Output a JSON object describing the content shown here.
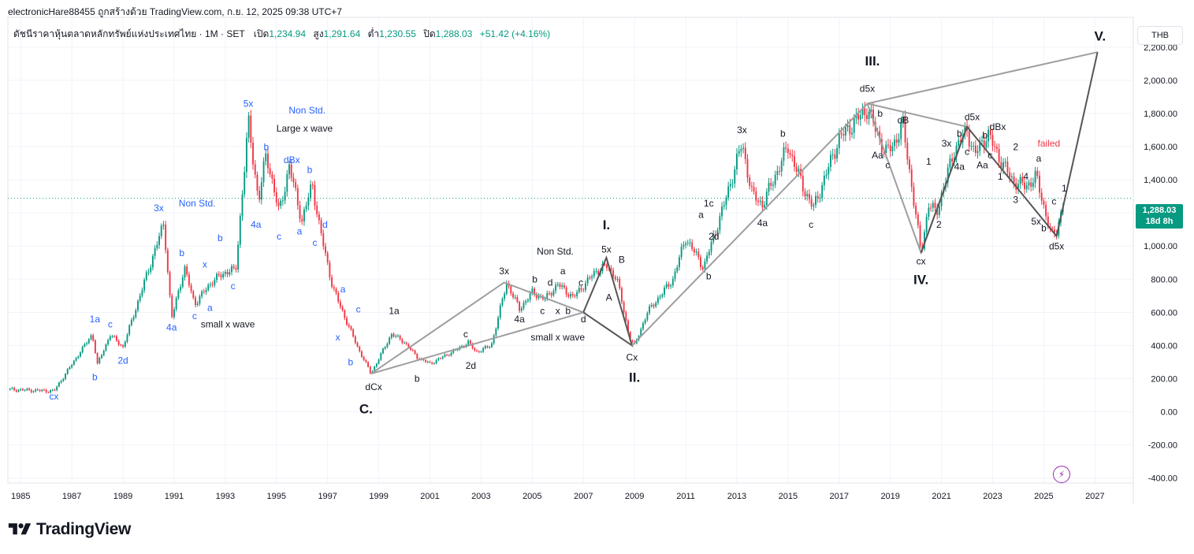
{
  "header": {
    "attribution": "electronicHare88455 ถูกสร้างด้วย TradingView.com, ก.ย. 12, 2025 09:38 UTC+7"
  },
  "legend": {
    "symbol": "ดัชนีราคาหุ้นตลาดหลักทรัพย์แห่งประเทศไทย · 1M · SET",
    "open_label": "เปิด",
    "open": "1,234.94",
    "high_label": "สูง",
    "high": "1,291.64",
    "low_label": "ต่ำ",
    "low": "1,230.55",
    "close_label": "ปิด",
    "close": "1,288.03",
    "change": "+51.42 (+4.16%)"
  },
  "currency": "THB",
  "price_tag": {
    "price": "1,288.03",
    "countdown": "18d 8h"
  },
  "brand": "TradingView",
  "colors": {
    "up": "#089981",
    "down": "#f23645",
    "wave_blue": "#2962ff",
    "line_gray": "#9e9e9e",
    "line_dark": "#555555",
    "failed_red": "#f23645"
  },
  "chart_data": {
    "type": "candlestick",
    "timeframe": "1M",
    "x_ticks": [
      "1985",
      "1987",
      "1989",
      "1991",
      "1993",
      "1995",
      "1997",
      "1999",
      "2001",
      "2003",
      "2005",
      "2007",
      "2009",
      "2011",
      "2013",
      "2015",
      "2017",
      "2019",
      "2021",
      "2023",
      "2025",
      "2027"
    ],
    "y_ticks": [
      "2,200.00",
      "2,000.00",
      "1,800.00",
      "1,600.00",
      "1,400.00",
      "1,200.00",
      "1,000.00",
      "800.00",
      "600.00",
      "400.00",
      "200.00",
      "0.00",
      "-200.00",
      "-400.00"
    ],
    "y_range": [
      -430,
      2380
    ],
    "x_range": [
      1984.5,
      2028.5
    ],
    "last_price": 1288.03,
    "price_path": [
      [
        1984.5,
        135
      ],
      [
        1986.3,
        125
      ],
      [
        1987.8,
        470
      ],
      [
        1988.0,
        285
      ],
      [
        1988.5,
        465
      ],
      [
        1989.0,
        390
      ],
      [
        1990.6,
        1140
      ],
      [
        1990.9,
        560
      ],
      [
        1991.4,
        870
      ],
      [
        1991.8,
        650
      ],
      [
        1992.5,
        790
      ],
      [
        1993.2,
        860
      ],
      [
        1993.4,
        840
      ],
      [
        1993.9,
        1750
      ],
      [
        1994.3,
        1270
      ],
      [
        1994.6,
        1560
      ],
      [
        1995.1,
        1200
      ],
      [
        1995.5,
        1480
      ],
      [
        1996.0,
        1150
      ],
      [
        1996.4,
        1380
      ],
      [
        1996.7,
        1100
      ],
      [
        1997.2,
        750
      ],
      [
        1997.7,
        560
      ],
      [
        1998.2,
        380
      ],
      [
        1998.7,
        230
      ],
      [
        1999.5,
        470
      ],
      [
        2000.0,
        420
      ],
      [
        2000.5,
        330
      ],
      [
        2001.0,
        290
      ],
      [
        2002.1,
        380
      ],
      [
        2002.5,
        420
      ],
      [
        2002.8,
        360
      ],
      [
        2003.4,
        400
      ],
      [
        2004.0,
        780
      ],
      [
        2004.5,
        620
      ],
      [
        2005.0,
        720
      ],
      [
        2005.5,
        680
      ],
      [
        2006.0,
        770
      ],
      [
        2006.6,
        690
      ],
      [
        2007.5,
        850
      ],
      [
        2007.9,
        880
      ],
      [
        2008.3,
        810
      ],
      [
        2008.8,
        450
      ],
      [
        2009.0,
        400
      ],
      [
        2009.5,
        600
      ],
      [
        2010.5,
        800
      ],
      [
        2011.0,
        1050
      ],
      [
        2011.7,
        870
      ],
      [
        2012.5,
        1250
      ],
      [
        2013.2,
        1620
      ],
      [
        2013.6,
        1310
      ],
      [
        2014.0,
        1250
      ],
      [
        2015.0,
        1600
      ],
      [
        2015.6,
        1350
      ],
      [
        2016.0,
        1230
      ],
      [
        2017.0,
        1650
      ],
      [
        2018.1,
        1830
      ],
      [
        2018.8,
        1560
      ],
      [
        2019.1,
        1610
      ],
      [
        2019.5,
        1730
      ],
      [
        2020.2,
        960
      ],
      [
        2020.5,
        1250
      ],
      [
        2020.8,
        1200
      ],
      [
        2021.5,
        1580
      ],
      [
        2022.0,
        1700
      ],
      [
        2022.3,
        1550
      ],
      [
        2022.8,
        1680
      ],
      [
        2023.3,
        1520
      ],
      [
        2023.8,
        1390
      ],
      [
        2024.3,
        1360
      ],
      [
        2024.7,
        1420
      ],
      [
        2025.3,
        1060
      ],
      [
        2025.5,
        1090
      ],
      [
        2025.8,
        1288
      ]
    ],
    "elliott_lines": [
      {
        "style": "gray",
        "points": [
          [
            1998.7,
            230
          ],
          [
            2003.9,
            780
          ],
          [
            2007.0,
            600
          ],
          [
            1998.7,
            230
          ]
        ]
      },
      {
        "style": "dark",
        "points": [
          [
            2007.0,
            600
          ],
          [
            2007.9,
            930
          ],
          [
            2008.9,
            400
          ],
          [
            2007.0,
            600
          ]
        ]
      },
      {
        "style": "gray",
        "points": [
          [
            2008.9,
            400
          ],
          [
            2018.1,
            1860
          ],
          [
            2027.1,
            2170
          ]
        ]
      },
      {
        "style": "gray",
        "points": [
          [
            2018.1,
            1860
          ],
          [
            2020.2,
            960
          ],
          [
            2022.0,
            1720
          ],
          [
            2018.1,
            1860
          ]
        ]
      },
      {
        "style": "dark",
        "points": [
          [
            2020.2,
            960
          ],
          [
            2022.0,
            1720
          ],
          [
            2025.5,
            1060
          ],
          [
            2027.1,
            2170
          ]
        ]
      }
    ],
    "annotations": [
      {
        "t": "cx",
        "x": 1986.3,
        "y": 75,
        "c": "blue"
      },
      {
        "t": "b",
        "x": 1987.9,
        "y": 190,
        "c": "blue"
      },
      {
        "t": "1a",
        "x": 1987.9,
        "y": 540,
        "c": "blue"
      },
      {
        "t": "c",
        "x": 1988.5,
        "y": 510,
        "c": "blue"
      },
      {
        "t": "2d",
        "x": 1989.0,
        "y": 290,
        "c": "blue"
      },
      {
        "t": "3x",
        "x": 1990.4,
        "y": 1210,
        "c": "blue"
      },
      {
        "t": "Non Std.",
        "x": 1991.9,
        "y": 1240,
        "c": "blue"
      },
      {
        "t": "4a",
        "x": 1990.9,
        "y": 490,
        "c": "blue"
      },
      {
        "t": "b",
        "x": 1991.3,
        "y": 940,
        "c": "blue"
      },
      {
        "t": "c",
        "x": 1991.8,
        "y": 560,
        "c": "blue"
      },
      {
        "t": "x",
        "x": 1992.2,
        "y": 870,
        "c": "blue"
      },
      {
        "t": "a",
        "x": 1992.4,
        "y": 610,
        "c": "blue"
      },
      {
        "t": "b",
        "x": 1992.8,
        "y": 1030,
        "c": "blue"
      },
      {
        "t": "c",
        "x": 1993.3,
        "y": 740,
        "c": "blue"
      },
      {
        "t": "small x wave",
        "x": 1993.1,
        "y": 510,
        "c": "black"
      },
      {
        "t": "5x",
        "x": 1993.9,
        "y": 1840,
        "c": "blue"
      },
      {
        "t": "Non Std.",
        "x": 1996.2,
        "y": 1800,
        "c": "blue"
      },
      {
        "t": "Large x wave",
        "x": 1996.1,
        "y": 1690,
        "c": "black"
      },
      {
        "t": "b",
        "x": 1994.6,
        "y": 1580,
        "c": "blue"
      },
      {
        "t": "dBx",
        "x": 1995.6,
        "y": 1500,
        "c": "blue"
      },
      {
        "t": "b",
        "x": 1996.3,
        "y": 1440,
        "c": "blue"
      },
      {
        "t": "4a",
        "x": 1994.2,
        "y": 1110,
        "c": "blue"
      },
      {
        "t": "c",
        "x": 1995.1,
        "y": 1040,
        "c": "blue"
      },
      {
        "t": "a",
        "x": 1995.9,
        "y": 1070,
        "c": "blue"
      },
      {
        "t": "c",
        "x": 1996.5,
        "y": 1000,
        "c": "blue"
      },
      {
        "t": "d",
        "x": 1996.9,
        "y": 1110,
        "c": "blue"
      },
      {
        "t": "a",
        "x": 1997.6,
        "y": 720,
        "c": "blue"
      },
      {
        "t": "c",
        "x": 1998.2,
        "y": 600,
        "c": "blue"
      },
      {
        "t": "x",
        "x": 1997.4,
        "y": 430,
        "c": "blue"
      },
      {
        "t": "b",
        "x": 1997.9,
        "y": 280,
        "c": "blue"
      },
      {
        "t": "dCx",
        "x": 1998.8,
        "y": 130,
        "c": "black"
      },
      {
        "t": "C.",
        "x": 1998.5,
        "y": -10,
        "c": "black",
        "big": true
      },
      {
        "t": "1a",
        "x": 1999.6,
        "y": 590,
        "c": "black"
      },
      {
        "t": "b",
        "x": 2000.5,
        "y": 180,
        "c": "black"
      },
      {
        "t": "c",
        "x": 2002.4,
        "y": 450,
        "c": "black"
      },
      {
        "t": "2d",
        "x": 2002.6,
        "y": 260,
        "c": "black"
      },
      {
        "t": "3x",
        "x": 2003.9,
        "y": 830,
        "c": "black"
      },
      {
        "t": "Non Std.",
        "x": 2005.9,
        "y": 950,
        "c": "black"
      },
      {
        "t": "4a",
        "x": 2004.5,
        "y": 540,
        "c": "black"
      },
      {
        "t": "b",
        "x": 2005.1,
        "y": 780,
        "c": "black"
      },
      {
        "t": "c",
        "x": 2005.4,
        "y": 590,
        "c": "black"
      },
      {
        "t": "d",
        "x": 2005.7,
        "y": 760,
        "c": "black"
      },
      {
        "t": "x",
        "x": 2006.0,
        "y": 590,
        "c": "black"
      },
      {
        "t": "a",
        "x": 2006.2,
        "y": 830,
        "c": "black"
      },
      {
        "t": "b",
        "x": 2006.4,
        "y": 590,
        "c": "black"
      },
      {
        "t": "c",
        "x": 2006.9,
        "y": 760,
        "c": "black"
      },
      {
        "t": "d",
        "x": 2007.0,
        "y": 540,
        "c": "black"
      },
      {
        "t": "small x wave",
        "x": 2006.0,
        "y": 430,
        "c": "black"
      },
      {
        "t": "I.",
        "x": 2007.9,
        "y": 1100,
        "c": "black",
        "big": true
      },
      {
        "t": "5x",
        "x": 2007.9,
        "y": 960,
        "c": "black"
      },
      {
        "t": "B",
        "x": 2008.5,
        "y": 900,
        "c": "black"
      },
      {
        "t": "A",
        "x": 2008.0,
        "y": 670,
        "c": "black"
      },
      {
        "t": "Cx",
        "x": 2008.9,
        "y": 310,
        "c": "black"
      },
      {
        "t": "II.",
        "x": 2009.0,
        "y": 180,
        "c": "black",
        "big": true
      },
      {
        "t": "a",
        "x": 2011.6,
        "y": 1170,
        "c": "black"
      },
      {
        "t": "1c",
        "x": 2011.9,
        "y": 1240,
        "c": "black"
      },
      {
        "t": "2d",
        "x": 2012.1,
        "y": 1040,
        "c": "black"
      },
      {
        "t": "b",
        "x": 2011.9,
        "y": 800,
        "c": "black"
      },
      {
        "t": "3x",
        "x": 2013.2,
        "y": 1680,
        "c": "black"
      },
      {
        "t": "4a",
        "x": 2014.0,
        "y": 1120,
        "c": "black"
      },
      {
        "t": "b",
        "x": 2014.8,
        "y": 1660,
        "c": "black"
      },
      {
        "t": "c",
        "x": 2015.9,
        "y": 1110,
        "c": "black"
      },
      {
        "t": "III.",
        "x": 2018.3,
        "y": 2090,
        "c": "black",
        "big": true
      },
      {
        "t": "d5x",
        "x": 2018.1,
        "y": 1930,
        "c": "black"
      },
      {
        "t": "b",
        "x": 2018.6,
        "y": 1780,
        "c": "black"
      },
      {
        "t": "dB",
        "x": 2019.5,
        "y": 1740,
        "c": "black"
      },
      {
        "t": "Aa",
        "x": 2018.5,
        "y": 1530,
        "c": "black"
      },
      {
        "t": "c",
        "x": 2018.9,
        "y": 1470,
        "c": "black"
      },
      {
        "t": "1",
        "x": 2020.5,
        "y": 1490,
        "c": "black"
      },
      {
        "t": "2",
        "x": 2020.9,
        "y": 1110,
        "c": "black"
      },
      {
        "t": "cx",
        "x": 2020.2,
        "y": 890,
        "c": "black"
      },
      {
        "t": "IV.",
        "x": 2020.2,
        "y": 770,
        "c": "black",
        "big": true
      },
      {
        "t": "3x",
        "x": 2021.2,
        "y": 1600,
        "c": "black"
      },
      {
        "t": "b",
        "x": 2021.7,
        "y": 1660,
        "c": "black"
      },
      {
        "t": "4a",
        "x": 2021.7,
        "y": 1460,
        "c": "black"
      },
      {
        "t": "c",
        "x": 2022.0,
        "y": 1550,
        "c": "black"
      },
      {
        "t": "d5x",
        "x": 2022.2,
        "y": 1760,
        "c": "black"
      },
      {
        "t": "Aa",
        "x": 2022.6,
        "y": 1470,
        "c": "black"
      },
      {
        "t": "b",
        "x": 2022.7,
        "y": 1650,
        "c": "black"
      },
      {
        "t": "c",
        "x": 2022.9,
        "y": 1530,
        "c": "black"
      },
      {
        "t": "dBx",
        "x": 2023.2,
        "y": 1700,
        "c": "black"
      },
      {
        "t": "2",
        "x": 2023.9,
        "y": 1580,
        "c": "black"
      },
      {
        "t": "failed",
        "x": 2025.2,
        "y": 1600,
        "c": "red"
      },
      {
        "t": "1",
        "x": 2023.3,
        "y": 1400,
        "c": "black"
      },
      {
        "t": "a",
        "x": 2024.8,
        "y": 1510,
        "c": "black"
      },
      {
        "t": "4",
        "x": 2024.3,
        "y": 1400,
        "c": "black"
      },
      {
        "t": "3",
        "x": 2023.9,
        "y": 1260,
        "c": "black"
      },
      {
        "t": "5x",
        "x": 2024.7,
        "y": 1130,
        "c": "black"
      },
      {
        "t": "c",
        "x": 2025.4,
        "y": 1250,
        "c": "black"
      },
      {
        "t": "b",
        "x": 2025.0,
        "y": 1090,
        "c": "black"
      },
      {
        "t": "1",
        "x": 2025.8,
        "y": 1330,
        "c": "black"
      },
      {
        "t": "d5x",
        "x": 2025.5,
        "y": 980,
        "c": "black"
      },
      {
        "t": "V.",
        "x": 2027.2,
        "y": 2240,
        "c": "black",
        "big": true
      }
    ]
  }
}
